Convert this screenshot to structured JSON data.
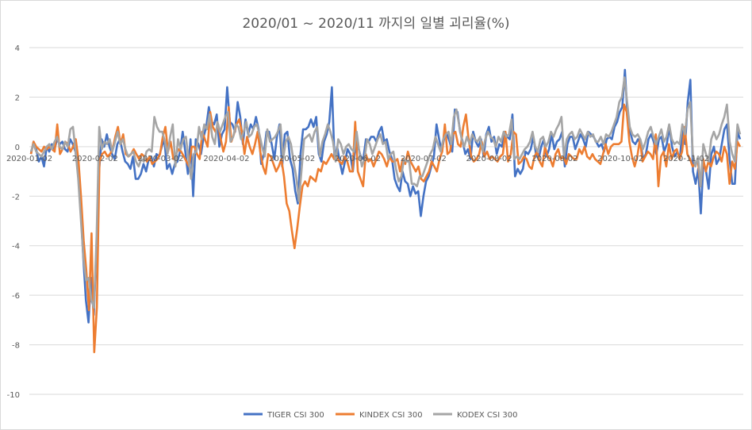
{
  "chart_data": {
    "type": "line",
    "title": "2020/01 ~ 2020/11 까지의 일별 괴리율(%)",
    "xlabel": "",
    "ylabel": "",
    "ylim": [
      -10,
      4
    ],
    "yticks": [
      4,
      2,
      0,
      -2,
      -4,
      -6,
      -8,
      -10
    ],
    "x_tick_labels": [
      "2020-01-02",
      "2020-02-02",
      "2020-03-02",
      "2020-04-02",
      "2020-05-02",
      "2020-06-02",
      "2020-07-02",
      "2020-08-02",
      "2020-09-02",
      "2020-10-02",
      "2020-11-02"
    ],
    "grid": true,
    "legend_position": "bottom",
    "series": [
      {
        "name": "TIGER CSI 300",
        "color": "#4472C4",
        "values": [
          -0.3,
          0.2,
          -0.1,
          -0.6,
          -0.4,
          -0.8,
          0.0,
          -0.2,
          0.1,
          -0.1,
          0.3,
          0.1,
          0.2,
          -0.1,
          -0.2,
          0.3,
          0.1,
          -0.2,
          -1.0,
          -2.5,
          -4.5,
          -6.2,
          -7.1,
          -5.3,
          -6.8,
          -4.2,
          -1.0,
          0.3,
          0.0,
          0.5,
          0.0,
          -0.3,
          -0.5,
          0.1,
          0.3,
          -0.2,
          -0.6,
          -0.7,
          -0.9,
          -0.4,
          -1.3,
          -1.3,
          -1.1,
          -0.7,
          -1.0,
          -0.5,
          -0.4,
          -0.8,
          -0.3,
          -0.4,
          0.0,
          0.3,
          -0.9,
          -0.7,
          -1.1,
          -0.7,
          -0.6,
          -0.2,
          0.6,
          -0.2,
          -1.1,
          0.3,
          -2.0,
          0.3,
          0.1,
          -0.3,
          0.4,
          0.8,
          1.6,
          1.0,
          0.9,
          1.3,
          0.0,
          0.5,
          0.7,
          2.4,
          1.0,
          0.9,
          0.6,
          1.8,
          1.2,
          0.1,
          1.1,
          0.5,
          0.9,
          0.7,
          1.2,
          0.7,
          -0.7,
          -0.3,
          0.6,
          0.6,
          0.1,
          -0.5,
          0.4,
          0.9,
          -0.8,
          0.5,
          0.6,
          -0.5,
          -0.9,
          -1.8,
          -2.3,
          -0.3,
          0.7,
          0.7,
          0.8,
          1.1,
          0.8,
          1.2,
          -0.3,
          -0.6,
          0.2,
          0.5,
          1.0,
          2.4,
          -0.5,
          0.0,
          -0.6,
          -1.1,
          -0.6,
          -0.1,
          -0.3,
          -1.0,
          0.1,
          0.0,
          -0.4,
          -0.5,
          0.3,
          0.2,
          0.4,
          0.4,
          0.2,
          0.6,
          0.8,
          0.2,
          0.3,
          -0.2,
          -0.5,
          -1.3,
          -1.6,
          -1.8,
          -1.0,
          -1.4,
          -1.5,
          -2.0,
          -1.6,
          -1.9,
          -1.8,
          -2.8,
          -2.0,
          -1.4,
          -1.2,
          -0.8,
          -0.4,
          0.9,
          0.3,
          -0.2,
          0.4,
          0.5,
          0.2,
          -0.2,
          1.5,
          1.4,
          0.6,
          0.2,
          -0.3,
          -0.1,
          -0.5,
          0.6,
          0.2,
          0.0,
          0.3,
          -0.4,
          0.5,
          0.8,
          0.2,
          0.4,
          -0.3,
          0.1,
          0.0,
          0.6,
          0.4,
          0.3,
          1.3,
          -1.2,
          -0.9,
          -1.1,
          -0.9,
          -0.2,
          -0.3,
          -0.1,
          0.4,
          -0.3,
          -0.5,
          0.0,
          0.3,
          -0.4,
          -0.1,
          0.5,
          -0.1,
          0.2,
          0.3,
          0.6,
          -0.8,
          0.1,
          0.4,
          0.4,
          -0.1,
          0.2,
          0.5,
          0.3,
          0.0,
          0.6,
          0.5,
          0.4,
          0.2,
          0.0,
          0.1,
          -0.2,
          0.3,
          0.4,
          0.3,
          0.8,
          1.0,
          1.4,
          1.6,
          3.1,
          1.2,
          0.6,
          0.2,
          0.1,
          0.3,
          0.1,
          -0.5,
          -0.3,
          0.3,
          0.5,
          0.2,
          -0.3,
          0.3,
          0.4,
          -0.2,
          0.1,
          0.8,
          0.0,
          -0.4,
          -0.2,
          -0.5,
          0.8,
          0.1,
          1.8,
          2.7,
          -1.0,
          -1.5,
          -0.9,
          -2.7,
          -0.6,
          -1.0,
          -1.7,
          -0.3,
          0.0,
          -0.7,
          -0.5,
          0.1,
          0.7,
          0.9,
          -0.5,
          -1.5,
          -1.5,
          0.6,
          0.3
        ],
        "sample_every": 1
      },
      {
        "name": "KINDEX CSI 300",
        "color": "#ED7D31",
        "values": [
          -0.3,
          0.2,
          0.0,
          -0.1,
          -0.2,
          0.0,
          -0.1,
          0.0,
          -0.1,
          -0.2,
          0.9,
          -0.3,
          -0.1,
          0.2,
          0.1,
          -0.2,
          0.0,
          0.3,
          -0.5,
          -2.0,
          -3.8,
          -5.0,
          -6.6,
          -3.5,
          -8.3,
          -6.5,
          -0.6,
          -0.3,
          -0.2,
          -0.4,
          -0.3,
          -0.1,
          0.4,
          0.8,
          0.1,
          0.5,
          -0.3,
          -0.4,
          -0.3,
          -0.1,
          -0.3,
          -0.5,
          -0.3,
          -0.4,
          -0.6,
          -0.4,
          -0.7,
          -0.6,
          -0.5,
          -0.3,
          0.4,
          0.8,
          -0.2,
          0.2,
          -0.5,
          -0.3,
          -0.1,
          -0.2,
          -0.4,
          -0.6,
          -0.8,
          0.0,
          0.0,
          -0.3,
          -0.5,
          0.6,
          0.3,
          0.0,
          1.4,
          0.8,
          0.6,
          0.9,
          0.3,
          -0.2,
          0.2,
          1.6,
          0.2,
          0.5,
          0.9,
          1.1,
          0.6,
          -0.3,
          0.4,
          0.0,
          -0.3,
          0.1,
          0.6,
          -0.2,
          -0.8,
          -1.1,
          -0.3,
          -0.4,
          -0.7,
          -1.0,
          -0.8,
          -0.5,
          -1.2,
          -2.3,
          -2.6,
          -3.4,
          -4.1,
          -3.3,
          -2.4,
          -1.6,
          -1.4,
          -1.6,
          -1.2,
          -1.3,
          -1.4,
          -0.9,
          -1.0,
          -0.6,
          -0.7,
          -0.5,
          -0.3,
          -0.5,
          -0.4,
          -0.6,
          -0.7,
          -0.4,
          -0.6,
          -1.0,
          -1.0,
          1.0,
          -1.0,
          -1.3,
          -1.6,
          -0.3,
          -0.6,
          -0.5,
          -0.8,
          -0.5,
          -0.2,
          -0.3,
          -0.5,
          -0.8,
          -0.4,
          -0.6,
          -0.6,
          -0.5,
          -1.0,
          -0.5,
          -0.7,
          -0.2,
          -0.6,
          -0.8,
          -1.0,
          -0.8,
          -1.3,
          -1.4,
          -1.2,
          -1.0,
          -0.6,
          -0.8,
          -1.0,
          -0.5,
          -0.2,
          0.9,
          -0.3,
          -0.2,
          0.5,
          0.6,
          0.1,
          0.0,
          0.8,
          1.3,
          0.3,
          -0.4,
          -0.6,
          -0.5,
          -0.3,
          0.2,
          -0.4,
          -0.2,
          -0.5,
          -0.4,
          -0.5,
          -0.6,
          -0.4,
          -0.3,
          0.6,
          -0.6,
          -0.3,
          0.6,
          0.5,
          -0.7,
          -0.6,
          -0.4,
          -0.5,
          -0.8,
          -0.9,
          -0.4,
          -0.2,
          -0.6,
          -0.8,
          0.0,
          -0.4,
          -0.5,
          -0.8,
          -0.3,
          -0.1,
          -0.5,
          -0.4,
          -0.7,
          -0.3,
          -0.4,
          -0.5,
          -0.5,
          -0.1,
          -0.3,
          0.0,
          -0.4,
          -0.5,
          -0.3,
          -0.5,
          -0.6,
          -0.7,
          -0.3,
          0.1,
          -0.3,
          0.0,
          0.1,
          0.1,
          0.1,
          0.2,
          1.7,
          1.4,
          0.2,
          -0.4,
          -0.8,
          -0.4,
          0.3,
          -0.6,
          -0.4,
          -0.2,
          -0.3,
          -0.5,
          0.5,
          -1.6,
          -0.4,
          -0.2,
          -0.8,
          0.1,
          -0.5,
          -0.2,
          -0.1,
          -0.5,
          -0.2,
          0.8,
          -0.3,
          -0.5,
          -0.8,
          -0.7,
          -0.6,
          -1.6,
          -0.5,
          -1.0,
          -0.6,
          -0.8,
          -0.4,
          -0.2,
          -0.3,
          -0.6,
          0.0,
          -0.3,
          -1.5,
          -0.6,
          -0.9,
          0.2,
          0.0
        ],
        "sample_every": 1
      },
      {
        "name": "KODEX CSI 300",
        "color": "#A5A5A5",
        "values": [
          -0.2,
          0.1,
          -0.2,
          -0.3,
          -0.4,
          -0.2,
          0.0,
          0.1,
          -0.1,
          0.2,
          0.4,
          0.0,
          -0.1,
          0.2,
          0.0,
          0.7,
          0.8,
          -0.2,
          -1.3,
          -2.9,
          -4.5,
          -5.4,
          -5.3,
          -6.2,
          -6.5,
          -3.6,
          0.8,
          -0.1,
          0.2,
          0.1,
          0.3,
          -0.2,
          0.2,
          0.6,
          0.1,
          0.3,
          -0.1,
          -0.4,
          -0.3,
          -0.2,
          -0.6,
          -0.8,
          -0.5,
          -0.6,
          -0.2,
          -0.1,
          -0.2,
          1.2,
          0.8,
          0.6,
          0.6,
          0.2,
          -0.3,
          0.4,
          0.9,
          -0.8,
          0.3,
          -0.1,
          0.3,
          0.4,
          -0.5,
          -1.3,
          -0.3,
          -0.2,
          0.8,
          0.3,
          0.9,
          0.7,
          1.3,
          0.4,
          0.1,
          1.0,
          0.6,
          0.9,
          1.2,
          1.4,
          0.2,
          0.4,
          0.9,
          0.8,
          0.3,
          0.6,
          1.0,
          0.4,
          0.5,
          0.8,
          0.9,
          0.5,
          0.0,
          -0.4,
          0.7,
          0.2,
          0.3,
          0.4,
          0.6,
          0.9,
          -0.5,
          0.2,
          0.4,
          0.1,
          -0.6,
          -1.2,
          -2.2,
          -1.0,
          0.3,
          0.4,
          0.5,
          0.2,
          0.6,
          0.8,
          -0.4,
          0.2,
          0.5,
          0.9,
          0.6,
          0.2,
          -0.6,
          0.3,
          0.1,
          -0.3,
          0.0,
          0.1,
          -0.1,
          -0.2,
          0.6,
          -0.2,
          -0.8,
          -0.5,
          0.3,
          0.1,
          -0.3,
          0.0,
          0.3,
          0.5,
          0.1,
          0.2,
          -0.5,
          -0.3,
          -0.2,
          -0.9,
          -1.4,
          -1.2,
          -0.5,
          -0.6,
          -0.6,
          -1.5,
          -1.5,
          -1.6,
          -1.2,
          -1.2,
          -0.9,
          -0.6,
          -0.3,
          -0.1,
          0.4,
          0.1,
          -0.2,
          0.3,
          0.5,
          0.6,
          0.1,
          1.2,
          1.5,
          0.9,
          0.3,
          0.0,
          0.4,
          0.1,
          0.5,
          0.3,
          0.2,
          0.4,
          -0.2,
          0.3,
          0.6,
          0.4,
          0.3,
          0.0,
          0.4,
          0.2,
          0.6,
          0.4,
          0.5,
          1.1,
          -0.5,
          -0.4,
          -0.5,
          -0.3,
          -0.1,
          0.0,
          0.2,
          0.6,
          0.0,
          -0.2,
          0.3,
          0.4,
          0.0,
          0.2,
          0.6,
          0.4,
          0.7,
          0.9,
          1.2,
          -0.4,
          0.3,
          0.5,
          0.6,
          0.3,
          0.4,
          0.7,
          0.5,
          0.3,
          0.6,
          0.4,
          0.5,
          0.2,
          0.2,
          0.4,
          0.1,
          0.5,
          0.4,
          0.6,
          0.9,
          1.2,
          1.8,
          2.0,
          2.8,
          1.8,
          0.8,
          0.5,
          0.4,
          0.5,
          0.3,
          -0.1,
          0.2,
          0.6,
          0.8,
          0.4,
          0.1,
          0.4,
          0.7,
          0.2,
          0.4,
          0.9,
          0.3,
          0.1,
          0.2,
          0.1,
          0.9,
          0.5,
          1.5,
          1.8,
          -0.3,
          -0.8,
          -0.4,
          -1.6,
          0.1,
          -0.3,
          -0.6,
          0.3,
          0.6,
          0.3,
          0.5,
          0.9,
          1.2,
          1.7,
          0.2,
          -0.3,
          -0.6,
          0.9,
          0.5
        ],
        "sample_every": 1
      }
    ]
  }
}
